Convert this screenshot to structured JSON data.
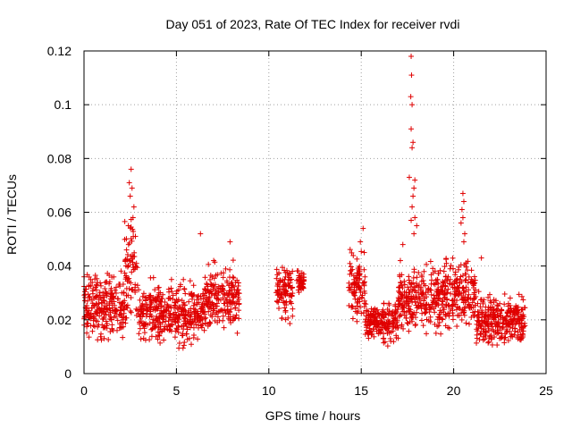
{
  "chart_data": {
    "type": "scatter",
    "title": "Day 051 of 2023, Rate Of TEC Index for receiver rvdi",
    "xlabel": "GPS time / hours",
    "ylabel": "ROTI / TECUs",
    "xlim": [
      0,
      25
    ],
    "ylim": [
      0,
      0.12
    ],
    "xticks": [
      0,
      5,
      10,
      15,
      20,
      25
    ],
    "yticks": [
      0,
      0.02,
      0.04,
      0.06,
      0.08,
      0.1,
      0.12
    ],
    "xtick_labels": [
      "0",
      "5",
      "10",
      "15",
      "20",
      "25"
    ],
    "ytick_labels": [
      "0",
      "0.02",
      "0.04",
      "0.06",
      "0.08",
      "0.1",
      "0.12"
    ],
    "grid": true,
    "marker": "+",
    "color": "#e00000",
    "series": [
      {
        "name": "ROTI",
        "segments": [
          {
            "x_start": 0.0,
            "x_end": 2.2,
            "base": 0.025,
            "spread": 0.008
          },
          {
            "x_start": 2.2,
            "x_end": 2.9,
            "base": 0.035,
            "spread": 0.014
          },
          {
            "x_start": 2.9,
            "x_end": 5.0,
            "base": 0.023,
            "spread": 0.008
          },
          {
            "x_start": 5.0,
            "x_end": 6.5,
            "base": 0.022,
            "spread": 0.008
          },
          {
            "x_start": 6.5,
            "x_end": 8.4,
            "base": 0.028,
            "spread": 0.009
          },
          {
            "x_start": 10.4,
            "x_end": 11.3,
            "base": 0.03,
            "spread": 0.007
          },
          {
            "x_start": 11.5,
            "x_end": 11.9,
            "base": 0.034,
            "spread": 0.003
          },
          {
            "x_start": 14.3,
            "x_end": 15.2,
            "base": 0.032,
            "spread": 0.009
          },
          {
            "x_start": 15.2,
            "x_end": 17.0,
            "base": 0.019,
            "spread": 0.005
          },
          {
            "x_start": 17.0,
            "x_end": 19.5,
            "base": 0.028,
            "spread": 0.008
          },
          {
            "x_start": 19.5,
            "x_end": 21.2,
            "base": 0.03,
            "spread": 0.009
          },
          {
            "x_start": 21.2,
            "x_end": 23.9,
            "base": 0.02,
            "spread": 0.006
          }
        ],
        "peaks": [
          {
            "x": 2.55,
            "y": 0.076
          },
          {
            "x": 2.45,
            "y": 0.071
          },
          {
            "x": 2.6,
            "y": 0.069
          },
          {
            "x": 2.5,
            "y": 0.066
          },
          {
            "x": 2.7,
            "y": 0.062
          },
          {
            "x": 2.65,
            "y": 0.058
          },
          {
            "x": 2.4,
            "y": 0.055
          },
          {
            "x": 6.3,
            "y": 0.052
          },
          {
            "x": 7.9,
            "y": 0.049
          },
          {
            "x": 15.1,
            "y": 0.054
          },
          {
            "x": 14.95,
            "y": 0.049
          },
          {
            "x": 17.25,
            "y": 0.048
          },
          {
            "x": 17.7,
            "y": 0.118
          },
          {
            "x": 17.72,
            "y": 0.111
          },
          {
            "x": 17.68,
            "y": 0.103
          },
          {
            "x": 17.75,
            "y": 0.1
          },
          {
            "x": 17.7,
            "y": 0.091
          },
          {
            "x": 17.8,
            "y": 0.086
          },
          {
            "x": 17.75,
            "y": 0.084
          },
          {
            "x": 17.6,
            "y": 0.073
          },
          {
            "x": 17.9,
            "y": 0.072
          },
          {
            "x": 17.85,
            "y": 0.069
          },
          {
            "x": 17.8,
            "y": 0.066
          },
          {
            "x": 17.75,
            "y": 0.062
          },
          {
            "x": 17.9,
            "y": 0.058
          },
          {
            "x": 17.7,
            "y": 0.057
          },
          {
            "x": 18.0,
            "y": 0.055
          },
          {
            "x": 17.85,
            "y": 0.052
          },
          {
            "x": 20.5,
            "y": 0.067
          },
          {
            "x": 20.55,
            "y": 0.064
          },
          {
            "x": 20.45,
            "y": 0.061
          },
          {
            "x": 20.5,
            "y": 0.058
          },
          {
            "x": 20.4,
            "y": 0.056
          },
          {
            "x": 20.6,
            "y": 0.052
          },
          {
            "x": 20.55,
            "y": 0.049
          },
          {
            "x": 21.5,
            "y": 0.043
          }
        ]
      }
    ]
  }
}
